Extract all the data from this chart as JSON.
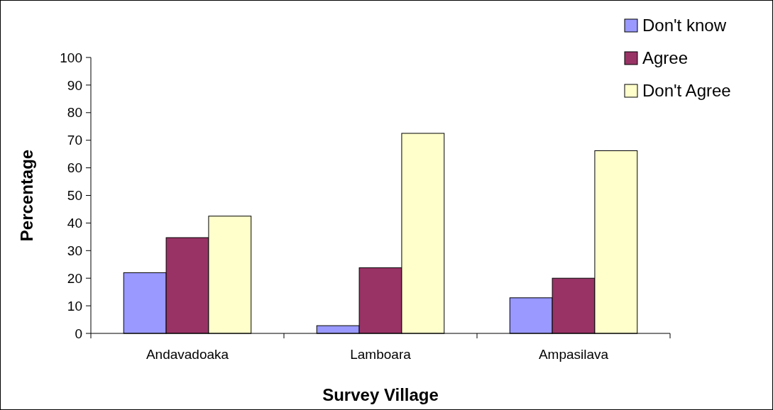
{
  "chart_data": {
    "type": "bar",
    "xlabel": "Survey Village",
    "ylabel": "Percentage",
    "categories": [
      "Andavadoaka",
      "Lamboara",
      "Ampasilava"
    ],
    "series": [
      {
        "name": "Don't know",
        "color": "#9999ff",
        "values": [
          22,
          2.8,
          12.9
        ]
      },
      {
        "name": "Agree",
        "color": "#993366",
        "values": [
          34.7,
          23.8,
          20
        ]
      },
      {
        "name": "Don't Agree",
        "color": "#ffffcc",
        "values": [
          42.5,
          72.5,
          66.2
        ]
      }
    ],
    "ylim": [
      0,
      100
    ],
    "yticks": [
      0,
      10,
      20,
      30,
      40,
      50,
      60,
      70,
      80,
      90,
      100
    ],
    "grid": false,
    "legend": "top right"
  }
}
